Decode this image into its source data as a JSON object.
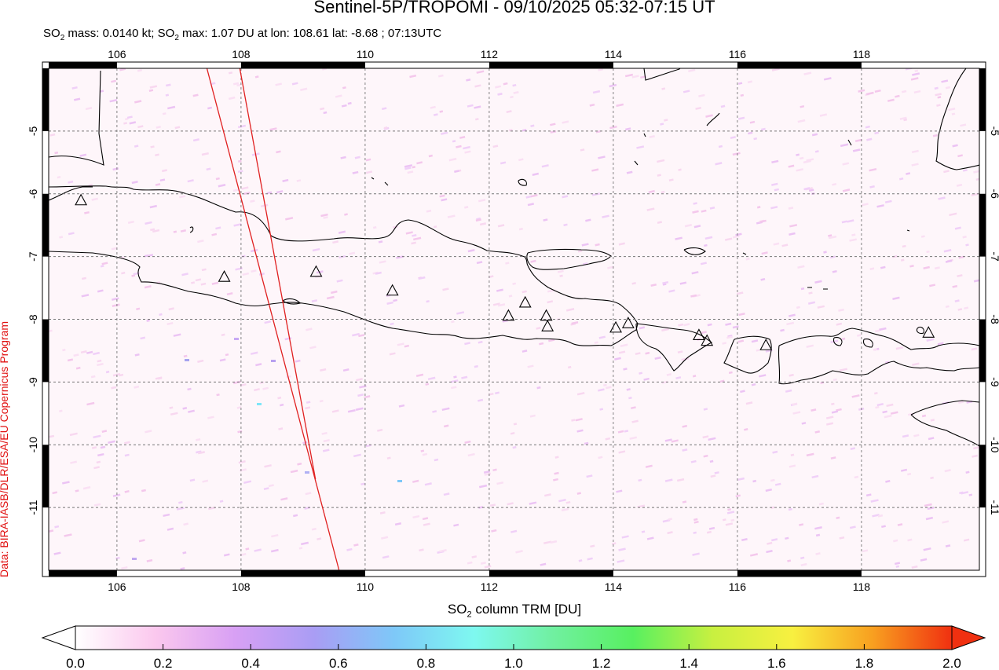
{
  "header": {
    "title": "Sentinel-5P/TROPOMI - 09/10/2025 05:32-07:15 UT",
    "stats_prefix": "SO",
    "stats_sub": "2",
    "stats_mid": " mass: 0.0140 kt; SO",
    "stats_sub2": "2",
    "stats_suffix": " max: 1.07 DU at lon: 108.61 lat: -8.68 ; 07:13UTC"
  },
  "credit": "Data: BIRA-IASB/DLR/ESA/EU Copernicus Program",
  "map": {
    "lon_range": [
      104.9,
      119.9
    ],
    "lat_range": [
      -12.0,
      -4.0
    ],
    "lon_ticks": [
      "106",
      "108",
      "110",
      "112",
      "114",
      "116",
      "118"
    ],
    "lat_ticks": [
      "-5",
      "-6",
      "-7",
      "-8",
      "-9",
      "-10",
      "-11"
    ],
    "grid": true,
    "volcanoes": [
      {
        "lon": 105.42,
        "lat": -6.1
      },
      {
        "lon": 107.73,
        "lat": -7.32
      },
      {
        "lon": 109.21,
        "lat": -7.24
      },
      {
        "lon": 110.44,
        "lat": -7.54
      },
      {
        "lon": 112.31,
        "lat": -7.94
      },
      {
        "lon": 112.58,
        "lat": -7.73
      },
      {
        "lon": 112.92,
        "lat": -7.94
      },
      {
        "lon": 112.94,
        "lat": -8.11
      },
      {
        "lon": 114.04,
        "lat": -8.13
      },
      {
        "lon": 114.24,
        "lat": -8.06
      },
      {
        "lon": 115.38,
        "lat": -8.25
      },
      {
        "lon": 115.51,
        "lat": -8.34
      },
      {
        "lon": 116.46,
        "lat": -8.41
      },
      {
        "lon": 119.08,
        "lat": -8.21
      }
    ],
    "swath_edges": [
      {
        "lon1": 107.45,
        "lat1": -4.0,
        "lon2": 109.58,
        "lat2": -12.0
      },
      {
        "lon1": 107.98,
        "lat1": -4.0,
        "lon2": 109.2,
        "lat2": -10.55
      }
    ],
    "swath_color": "#e02020"
  },
  "colorbar": {
    "title_prefix": "SO",
    "title_sub": "2",
    "title_suffix": " column TRM [DU]",
    "ticks": [
      "0.0",
      "0.2",
      "0.4",
      "0.6",
      "0.8",
      "1.0",
      "1.2",
      "1.4",
      "1.6",
      "1.8",
      "2.0"
    ],
    "range": [
      0.0,
      2.0
    ],
    "colors": [
      "#ffffff",
      "#fbc8ee",
      "#d8a0f4",
      "#a99df4",
      "#7ec8f8",
      "#7ef8f0",
      "#70f0a0",
      "#58f060",
      "#c8f040",
      "#f8f040",
      "#f8a020",
      "#f03010"
    ]
  }
}
